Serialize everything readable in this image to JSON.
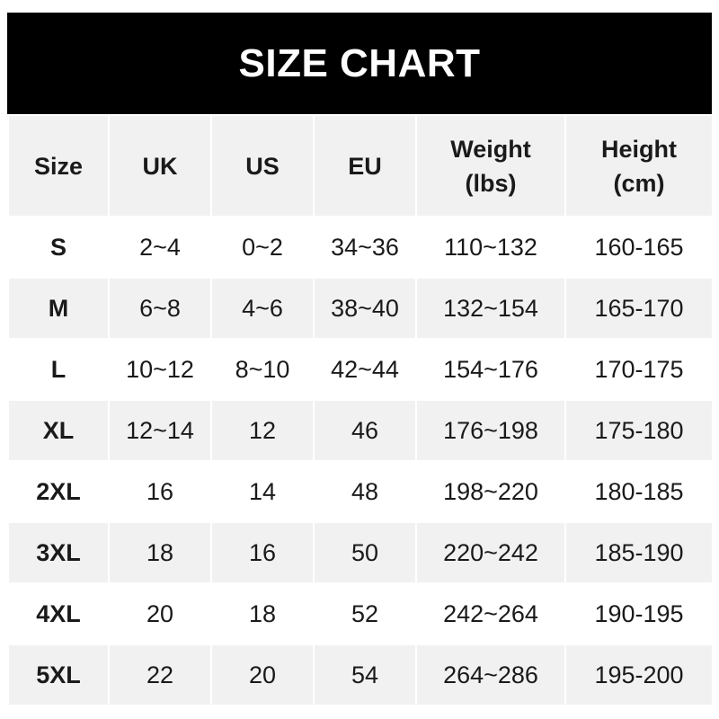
{
  "title": "SIZE CHART",
  "headers": [
    "Size",
    "UK",
    "US",
    "EU",
    "Weight\n(lbs)",
    "Height\n(cm)"
  ],
  "rows": [
    [
      "S",
      "2~4",
      "0~2",
      "34~36",
      "110~132",
      "160-165"
    ],
    [
      "M",
      "6~8",
      "4~6",
      "38~40",
      "132~154",
      "165-170"
    ],
    [
      "L",
      "10~12",
      "8~10",
      "42~44",
      "154~176",
      "170-175"
    ],
    [
      "XL",
      "12~14",
      "12",
      "46",
      "176~198",
      "175-180"
    ],
    [
      "2XL",
      "16",
      "14",
      "48",
      "198~220",
      "180-185"
    ],
    [
      "3XL",
      "18",
      "16",
      "50",
      "220~242",
      "185-190"
    ],
    [
      "4XL",
      "20",
      "18",
      "52",
      "242~264",
      "190-195"
    ],
    [
      "5XL",
      "22",
      "20",
      "54",
      "264~286",
      "195-200"
    ]
  ]
}
